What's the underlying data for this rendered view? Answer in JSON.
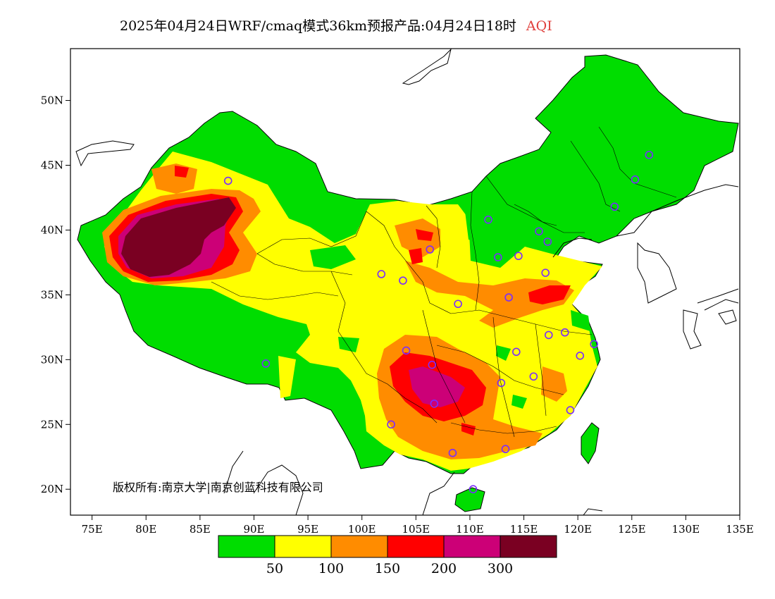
{
  "title": {
    "main": "2025年04月24日WRF/cmaq模式36km预报产品:04月24日18时",
    "variable": "AQI"
  },
  "copyright": "版权所有:南京大学|南京创蓝科技有限公司",
  "map": {
    "lon_ticks": [
      "75E",
      "80E",
      "85E",
      "90E",
      "95E",
      "100E",
      "105E",
      "110E",
      "115E",
      "120E",
      "125E",
      "130E",
      "135E"
    ],
    "lat_ticks": [
      "50N",
      "45N",
      "40N",
      "35N",
      "30N",
      "25N",
      "20N"
    ],
    "lon_range": [
      73,
      135
    ],
    "lat_range": [
      18,
      54
    ]
  },
  "legend": {
    "colors": [
      "#00dd00",
      "#ffff00",
      "#ff8c00",
      "#ff0000",
      "#cc0077",
      "#7a0022"
    ],
    "labels": [
      "50",
      "100",
      "150",
      "200",
      "300"
    ]
  },
  "stations": [
    {
      "lon": 87.6,
      "lat": 43.8
    },
    {
      "lon": 91.1,
      "lat": 29.7
    },
    {
      "lon": 101.8,
      "lat": 36.6
    },
    {
      "lon": 103.8,
      "lat": 36.1
    },
    {
      "lon": 106.3,
      "lat": 38.5
    },
    {
      "lon": 108.9,
      "lat": 34.3
    },
    {
      "lon": 104.1,
      "lat": 30.7
    },
    {
      "lon": 106.5,
      "lat": 29.6
    },
    {
      "lon": 106.7,
      "lat": 26.6
    },
    {
      "lon": 102.7,
      "lat": 25.0
    },
    {
      "lon": 108.4,
      "lat": 22.8
    },
    {
      "lon": 113.3,
      "lat": 23.1
    },
    {
      "lon": 110.3,
      "lat": 20.0
    },
    {
      "lon": 112.9,
      "lat": 28.2
    },
    {
      "lon": 114.3,
      "lat": 30.6
    },
    {
      "lon": 115.9,
      "lat": 28.7
    },
    {
      "lon": 117.3,
      "lat": 31.9
    },
    {
      "lon": 118.8,
      "lat": 32.1
    },
    {
      "lon": 120.2,
      "lat": 30.3
    },
    {
      "lon": 121.5,
      "lat": 31.2
    },
    {
      "lon": 119.3,
      "lat": 26.1
    },
    {
      "lon": 113.6,
      "lat": 34.8
    },
    {
      "lon": 117.0,
      "lat": 36.7
    },
    {
      "lon": 114.5,
      "lat": 38.0
    },
    {
      "lon": 112.6,
      "lat": 37.9
    },
    {
      "lon": 111.7,
      "lat": 40.8
    },
    {
      "lon": 116.4,
      "lat": 39.9
    },
    {
      "lon": 117.2,
      "lat": 39.1
    },
    {
      "lon": 123.4,
      "lat": 41.8
    },
    {
      "lon": 125.3,
      "lat": 43.9
    },
    {
      "lon": 126.6,
      "lat": 45.8
    }
  ]
}
